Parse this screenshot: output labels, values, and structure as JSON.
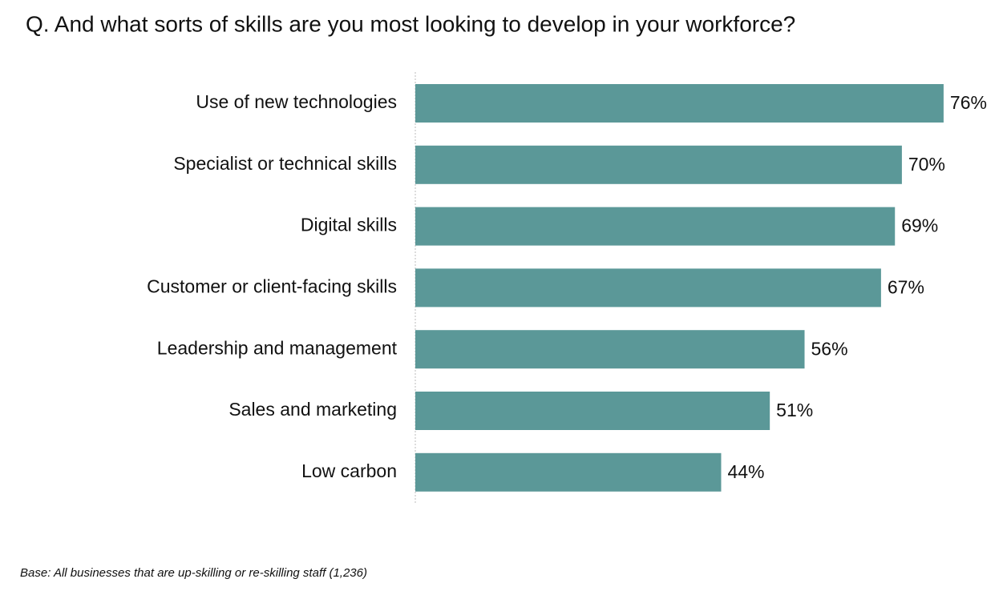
{
  "chart_data": {
    "type": "bar",
    "orientation": "horizontal",
    "title": "Q. And what sorts of skills are you most looking to develop in your workforce?",
    "categories": [
      "Use of new technologies",
      "Specialist or technical skills",
      "Digital skills",
      "Customer or client-facing skills",
      "Leadership and management",
      "Sales and marketing",
      "Low carbon"
    ],
    "values": [
      76,
      70,
      69,
      67,
      56,
      51,
      44
    ],
    "value_labels": [
      "76%",
      "70%",
      "69%",
      "67%",
      "56%",
      "51%",
      "44%"
    ],
    "color": "#5b9898",
    "footnote": "Base: All businesses that are up-skilling or re-skilling staff (1,236)"
  }
}
